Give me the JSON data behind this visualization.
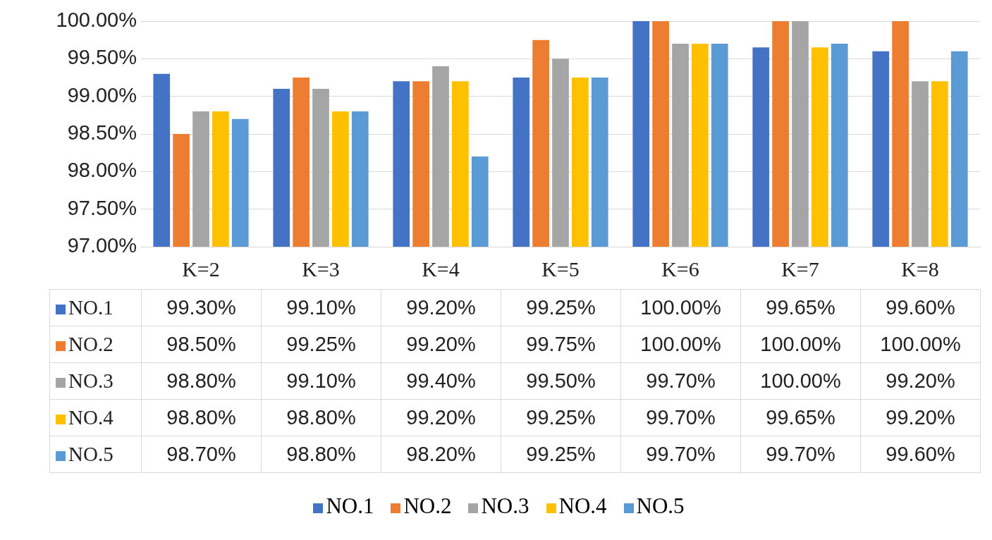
{
  "chart_data": {
    "type": "bar",
    "categories": [
      "K=2",
      "K=3",
      "K=4",
      "K=5",
      "K=6",
      "K=7",
      "K=8"
    ],
    "series": [
      {
        "name": "NO.1",
        "color": "#4472c4",
        "values": [
          99.3,
          99.1,
          99.2,
          99.25,
          100.0,
          99.65,
          99.6
        ],
        "value_labels": [
          "99.30%",
          "99.10%",
          "99.20%",
          "99.25%",
          "100.00%",
          "99.65%",
          "99.60%"
        ]
      },
      {
        "name": "NO.2",
        "color": "#ed7d31",
        "values": [
          98.5,
          99.25,
          99.2,
          99.75,
          100.0,
          100.0,
          100.0
        ],
        "value_labels": [
          "98.50%",
          "99.25%",
          "99.20%",
          "99.75%",
          "100.00%",
          "100.00%",
          "100.00%"
        ]
      },
      {
        "name": "NO.3",
        "color": "#a5a5a5",
        "values": [
          98.8,
          99.1,
          99.4,
          99.5,
          99.7,
          100.0,
          99.2
        ],
        "value_labels": [
          "98.80%",
          "99.10%",
          "99.40%",
          "99.50%",
          "99.70%",
          "100.00%",
          "99.20%"
        ]
      },
      {
        "name": "NO.4",
        "color": "#ffc000",
        "values": [
          98.8,
          98.8,
          99.2,
          99.25,
          99.7,
          99.65,
          99.2
        ],
        "value_labels": [
          "98.80%",
          "98.80%",
          "99.20%",
          "99.25%",
          "99.70%",
          "99.65%",
          "99.20%"
        ]
      },
      {
        "name": "NO.5",
        "color": "#5b9bd5",
        "values": [
          98.7,
          98.8,
          98.2,
          99.25,
          99.7,
          99.7,
          99.6
        ],
        "value_labels": [
          "98.70%",
          "98.80%",
          "98.20%",
          "99.25%",
          "99.70%",
          "99.70%",
          "99.60%"
        ]
      }
    ],
    "ylim": [
      97,
      100
    ],
    "yticks": [
      {
        "value": 97,
        "label": "97.00%"
      },
      {
        "value": 97.5,
        "label": "97.50%"
      },
      {
        "value": 98,
        "label": "98.00%"
      },
      {
        "value": 98.5,
        "label": "98.50%"
      },
      {
        "value": 99,
        "label": "99.00%"
      },
      {
        "value": 99.5,
        "label": "99.50%"
      },
      {
        "value": 100,
        "label": "100.00%"
      }
    ],
    "grid": "y",
    "legend": "bottom"
  }
}
